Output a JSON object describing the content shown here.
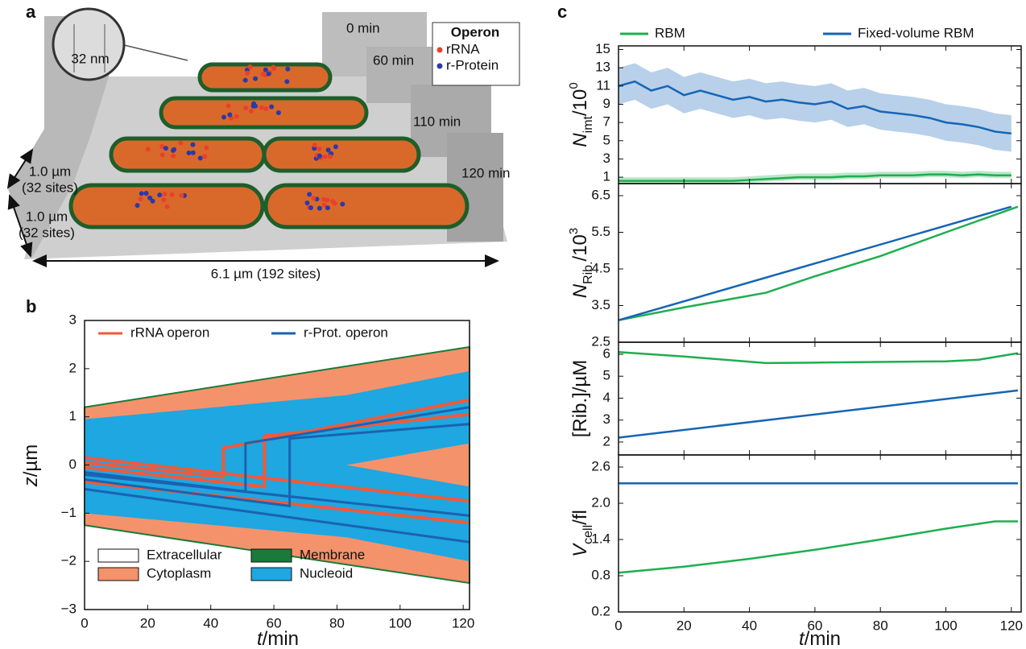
{
  "panel_a": {
    "label": "a",
    "legend_title": "Operon",
    "legend": [
      {
        "name": "rRNA",
        "color": "#e8412b"
      },
      {
        "name": "r-Protein",
        "color": "#2b3aa8"
      }
    ],
    "times": [
      "0 min",
      "60 min",
      "110 min",
      "120 min"
    ],
    "zoom": "32 nm",
    "heights": [
      [
        "1.0 µm",
        "(32 sites)"
      ],
      [
        "1.0 µm",
        "(32 sites)"
      ]
    ],
    "width": "6.1 µm (192 sites)"
  },
  "chart_data": [
    {
      "type": "area",
      "label": "b",
      "xlabel": {
        "main": "t",
        "rest": "/min"
      },
      "ylabel": {
        "main": "z",
        "rest": "/µm"
      },
      "xlim": [
        0,
        122
      ],
      "xticks": [
        0,
        20,
        40,
        60,
        80,
        100,
        120
      ],
      "ylim": [
        -3,
        3
      ],
      "yticks": [
        {
          "value": -3,
          "label": "−3"
        },
        {
          "value": -2,
          "label": "−2"
        },
        {
          "value": -1,
          "label": "−1"
        },
        0,
        1,
        2,
        3
      ],
      "regions": [
        {
          "name": "Extracellular",
          "color": "#ffffff"
        },
        {
          "name": "Cytoplasm",
          "color": "#f4926b",
          "patches": [
            {
              "x": [
                0,
                122
              ],
              "upper": [
                1.2,
                2.45
              ],
              "lower": [
                -1.25,
                -2.45
              ]
            }
          ]
        },
        {
          "name": "Membrane",
          "color": "#1a7a3a"
        },
        {
          "name": "Nucleoid",
          "color": "#1ea7e1",
          "patches": [
            {
              "x": [
                0,
                83,
                122
              ],
              "upper": [
                0.95,
                1.45,
                1.95
              ],
              "lower": [
                0,
                0,
                0.45
              ]
            },
            {
              "x": [
                0,
                83,
                122
              ],
              "upper": [
                0,
                0,
                -0.45
              ],
              "lower": [
                -1.0,
                -1.5,
                -2.0
              ]
            }
          ]
        }
      ],
      "operons": [
        {
          "name": "rRNA operon",
          "color": "#f05a3a",
          "lines": [
            {
              "x": [
                0,
                122
              ],
              "z": [
                0.15,
                -0.75
              ]
            },
            {
              "x": [
                0,
                122
              ],
              "z": [
                -0.35,
                -1.2
              ]
            },
            {
              "x": [
                0,
                44,
                44,
                122
              ],
              "z": [
                0.05,
                -0.25,
                0.35,
                1.35
              ]
            },
            {
              "x": [
                0,
                57,
                57,
                122
              ],
              "z": [
                -0.05,
                -0.45,
                0.6,
                1.05
              ]
            }
          ]
        },
        {
          "name": "r-Prot. operon",
          "color": "#1a63b0",
          "lines": [
            {
              "x": [
                0,
                122
              ],
              "z": [
                -0.2,
                -1.05
              ]
            },
            {
              "x": [
                0,
                122
              ],
              "z": [
                -0.5,
                -1.6
              ]
            },
            {
              "x": [
                0,
                51,
                51,
                122
              ],
              "z": [
                -0.15,
                -0.55,
                0.45,
                1.2
              ]
            },
            {
              "x": [
                0,
                65,
                65,
                122
              ],
              "z": [
                -0.3,
                -0.85,
                0.55,
                0.85
              ]
            }
          ]
        }
      ]
    },
    {
      "type": "line",
      "label": "c",
      "ylabel": {
        "main": "N",
        "sub": "imt",
        "rest": "/10",
        "sup": "0"
      },
      "xlim": [
        0,
        123
      ],
      "ylim": [
        0.3,
        15.4
      ],
      "yticks": [
        1,
        3,
        5,
        7,
        9,
        11,
        13,
        15
      ],
      "series": [
        {
          "name": "RBM",
          "color": "#1fae50",
          "x": [
            0,
            5,
            10,
            15,
            20,
            25,
            30,
            35,
            40,
            45,
            50,
            55,
            60,
            65,
            70,
            75,
            80,
            85,
            90,
            95,
            100,
            105,
            110,
            115,
            120
          ],
          "values": [
            0.6,
            0.6,
            0.6,
            0.6,
            0.6,
            0.6,
            0.6,
            0.6,
            0.7,
            0.8,
            0.9,
            1.0,
            1.0,
            1.0,
            1.1,
            1.1,
            1.2,
            1.2,
            1.2,
            1.3,
            1.3,
            1.2,
            1.3,
            1.2,
            1.2
          ],
          "lower": [
            0.3,
            0.3,
            0.3,
            0.3,
            0.3,
            0.3,
            0.3,
            0.3,
            0.4,
            0.5,
            0.6,
            0.7,
            0.7,
            0.7,
            0.8,
            0.8,
            0.9,
            0.9,
            0.9,
            1.0,
            1.0,
            0.9,
            1.0,
            0.9,
            0.9
          ],
          "upper": [
            1.0,
            1.0,
            1.0,
            1.0,
            1.0,
            1.0,
            1.0,
            1.0,
            1.1,
            1.2,
            1.3,
            1.4,
            1.4,
            1.4,
            1.5,
            1.5,
            1.6,
            1.6,
            1.6,
            1.7,
            1.7,
            1.6,
            1.7,
            1.6,
            1.6
          ]
        },
        {
          "name": "Fixed-volume RBM",
          "color": "#1565b5",
          "x": [
            0,
            5,
            10,
            15,
            20,
            25,
            30,
            35,
            40,
            45,
            50,
            55,
            60,
            65,
            70,
            75,
            80,
            85,
            90,
            95,
            100,
            105,
            110,
            115,
            120
          ],
          "values": [
            11,
            11.5,
            10.5,
            11,
            10,
            10.5,
            10,
            9.5,
            9.8,
            9.3,
            9.5,
            9.2,
            9,
            9.3,
            8.5,
            8.8,
            8.2,
            8,
            7.8,
            7.5,
            7,
            6.8,
            6.5,
            6,
            5.8
          ],
          "lower": [
            9,
            9.5,
            8.5,
            9,
            8,
            8.5,
            8,
            7.5,
            7.8,
            7.3,
            7.5,
            7.2,
            7,
            7.3,
            6.5,
            6.8,
            6.2,
            6,
            5.8,
            5.5,
            5,
            4.8,
            4.5,
            4,
            3.8
          ],
          "upper": [
            13,
            13.5,
            12.5,
            13,
            12,
            12.5,
            12,
            11.5,
            11.8,
            11.3,
            11.5,
            11.2,
            11,
            11.3,
            10.5,
            10.8,
            10.2,
            10,
            9.8,
            9.5,
            9,
            8.8,
            8.5,
            8,
            7.8
          ]
        }
      ]
    },
    {
      "type": "line",
      "ylabel": {
        "main": "N",
        "sub": "Rib.",
        "rest": "/10",
        "sup": "3"
      },
      "xlim": [
        0,
        123
      ],
      "ylim": [
        2.5,
        6.83
      ],
      "yticks": [
        2.5,
        3.5,
        4.5,
        5.5,
        6.5
      ],
      "series": [
        {
          "color": "#1fae50",
          "x": [
            0,
            20,
            45,
            60,
            80,
            100,
            122
          ],
          "values": [
            3.1,
            3.45,
            3.85,
            4.3,
            4.85,
            5.5,
            6.2
          ]
        },
        {
          "color": "#1565b5",
          "x": [
            0,
            120
          ],
          "values": [
            3.1,
            6.2
          ]
        }
      ]
    },
    {
      "type": "line",
      "ylabel": {
        "main": "",
        "rest": "[Rib.]/µM"
      },
      "xlim": [
        0,
        123
      ],
      "ylim": [
        1.41,
        6.55
      ],
      "yticks": [
        2,
        3,
        4,
        5,
        6
      ],
      "series": [
        {
          "color": "#1fae50",
          "x": [
            0,
            20,
            45,
            60,
            80,
            100,
            110,
            122
          ],
          "values": [
            6.1,
            5.9,
            5.6,
            5.62,
            5.65,
            5.68,
            5.75,
            6.05
          ]
        },
        {
          "color": "#1565b5",
          "x": [
            0,
            122
          ],
          "values": [
            2.2,
            4.35
          ]
        }
      ]
    },
    {
      "type": "line",
      "ylabel": {
        "main": "V",
        "sub": "cell",
        "rest": "/fl"
      },
      "xlabel": {
        "main": "t",
        "rest": "/min"
      },
      "xlim": [
        0,
        123
      ],
      "xticks": [
        0,
        20,
        40,
        60,
        80,
        100,
        120
      ],
      "ylim": [
        0.2,
        2.8
      ],
      "yticks": [
        0.2,
        0.8,
        1.4,
        {
          "value": 2,
          "label": "2.0"
        },
        2.6
      ],
      "series": [
        {
          "color": "#1fae50",
          "x": [
            0,
            20,
            40,
            60,
            80,
            100,
            115,
            122
          ],
          "values": [
            0.85,
            0.95,
            1.08,
            1.23,
            1.4,
            1.58,
            1.7,
            1.7
          ]
        },
        {
          "color": "#1565b5",
          "x": [
            0,
            122
          ],
          "values": [
            2.33,
            2.33
          ]
        }
      ]
    }
  ]
}
